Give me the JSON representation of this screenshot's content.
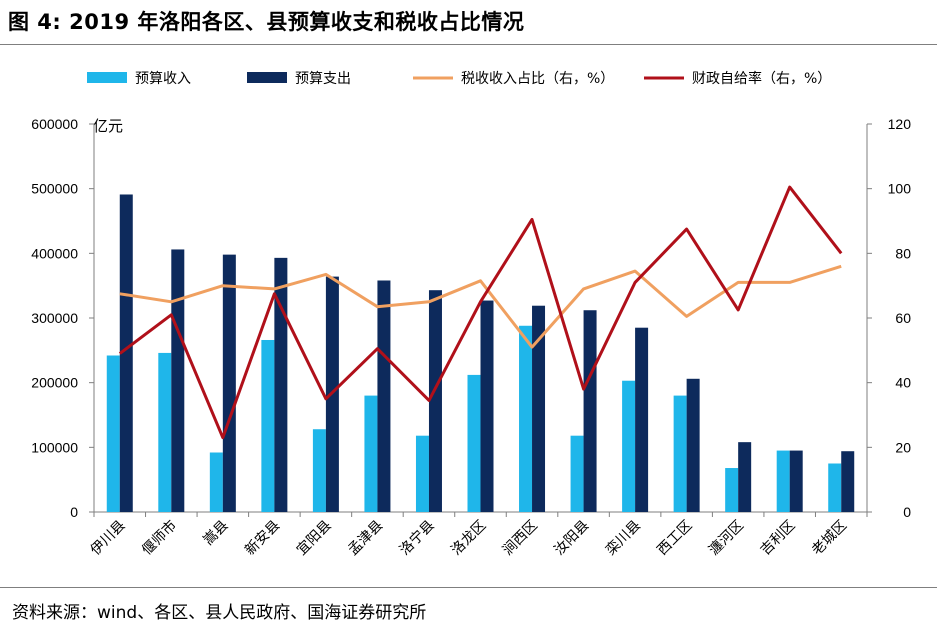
{
  "figure": {
    "title": "图 4:  2019 年洛阳各区、县预算收支和税收占比情况",
    "source": "资料来源：wind、各区、县人民政府、国海证券研究所"
  },
  "chart_data": {
    "type": "bar",
    "title": "",
    "categories": [
      "伊川县",
      "偃师市",
      "嵩县",
      "新安县",
      "宜阳县",
      "孟津县",
      "洛宁县",
      "洛龙区",
      "涧西区",
      "汝阳县",
      "栾川县",
      "西工区",
      "瀍河区",
      "吉利区",
      "老城区"
    ],
    "left_axis": {
      "unit_label": "亿元",
      "min": 0,
      "max": 600000,
      "ticks": [
        0,
        100000,
        200000,
        300000,
        400000,
        500000,
        600000
      ]
    },
    "right_axis": {
      "min": 0,
      "max": 120,
      "ticks": [
        0,
        20,
        40,
        60,
        80,
        100,
        120
      ]
    },
    "series": [
      {
        "name": "预算收入",
        "type": "bar",
        "axis": "left",
        "color": "#1fb6ea",
        "values": [
          242000,
          246000,
          92000,
          266000,
          128000,
          180000,
          118000,
          212000,
          288000,
          118000,
          203000,
          180000,
          68000,
          95000,
          75000
        ]
      },
      {
        "name": "预算支出",
        "type": "bar",
        "axis": "left",
        "color": "#0d2a5c",
        "values": [
          491000,
          406000,
          398000,
          393000,
          364000,
          358000,
          343000,
          327000,
          319000,
          312000,
          285000,
          206000,
          108000,
          95000,
          94000
        ]
      },
      {
        "name": "税收收入占比（右，%）",
        "type": "line",
        "axis": "right",
        "color": "#f0a060",
        "values": [
          67.5,
          65,
          70,
          69,
          73.5,
          63.5,
          65,
          71.5,
          51,
          69,
          74.5,
          60.5,
          71,
          71,
          76
        ]
      },
      {
        "name": "财政自给率（右，%）",
        "type": "line",
        "axis": "right",
        "color": "#b0101a",
        "values": [
          49,
          61,
          23,
          67.5,
          35,
          50.5,
          34.5,
          65,
          90.5,
          38,
          71,
          87.5,
          62.5,
          100.5,
          80
        ]
      }
    ],
    "legend_position": "top",
    "grid": false
  }
}
